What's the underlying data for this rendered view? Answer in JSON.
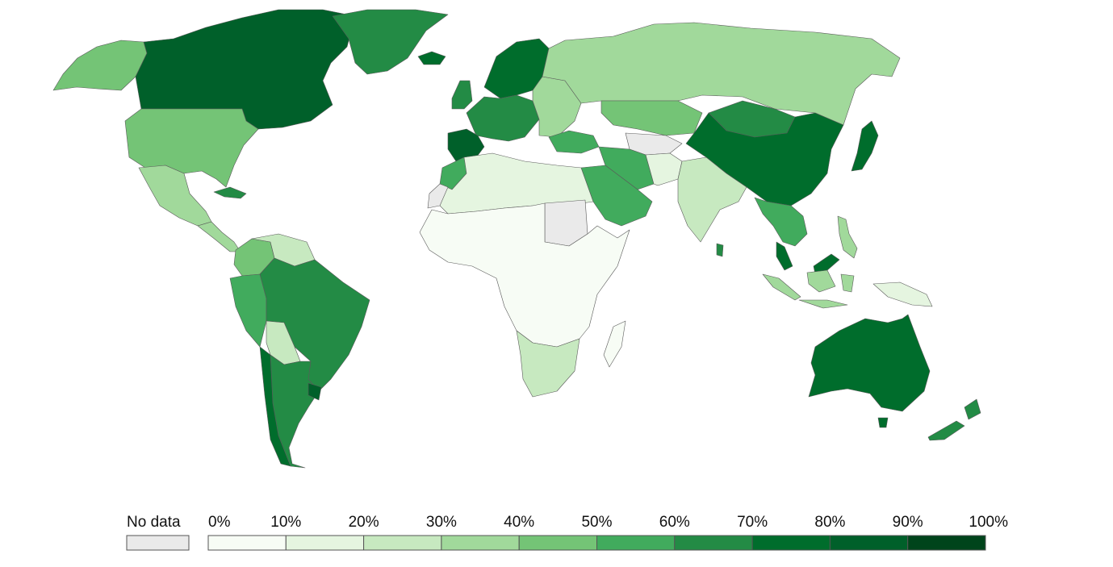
{
  "legend": {
    "no_data_label": "No data",
    "tick_labels": [
      "0%",
      "10%",
      "20%",
      "30%",
      "40%",
      "50%",
      "60%",
      "70%",
      "80%",
      "90%",
      "100%"
    ],
    "no_data_color": "#eaeaea",
    "bin_colors": [
      "#f7fcf5",
      "#e5f5e0",
      "#c7e9c0",
      "#a1d99b",
      "#74c476",
      "#41ab5d",
      "#238b45",
      "#006d2c",
      "#00602a",
      "#00441b"
    ]
  },
  "regions": [
    {
      "id": "alaska",
      "name": "Alaska",
      "bin": 4
    },
    {
      "id": "canada",
      "name": "Canada",
      "bin": 8
    },
    {
      "id": "greenland",
      "name": "Greenland",
      "bin": 6
    },
    {
      "id": "usa",
      "name": "United States",
      "bin": 4
    },
    {
      "id": "mexico",
      "name": "Mexico",
      "bin": 3
    },
    {
      "id": "central-america",
      "name": "Central America",
      "bin": 3
    },
    {
      "id": "cuba",
      "name": "Cuba",
      "bin": 6
    },
    {
      "id": "colombia",
      "name": "Colombia",
      "bin": 4
    },
    {
      "id": "venezuela",
      "name": "Venezuela",
      "bin": 2
    },
    {
      "id": "peru",
      "name": "Peru",
      "bin": 5
    },
    {
      "id": "brazil",
      "name": "Brazil",
      "bin": 6
    },
    {
      "id": "bolivia",
      "name": "Bolivia",
      "bin": 2
    },
    {
      "id": "argentina",
      "name": "Argentina",
      "bin": 6
    },
    {
      "id": "chile",
      "name": "Chile",
      "bin": 7
    },
    {
      "id": "uruguay",
      "name": "Uruguay",
      "bin": 8
    },
    {
      "id": "iceland",
      "name": "Iceland",
      "bin": 7
    },
    {
      "id": "scandinavia",
      "name": "Scandinavia",
      "bin": 7
    },
    {
      "id": "uk",
      "name": "United Kingdom",
      "bin": 6
    },
    {
      "id": "western-europe",
      "name": "Western Europe",
      "bin": 6
    },
    {
      "id": "iberia",
      "name": "Spain and Portugal",
      "bin": 8
    },
    {
      "id": "eastern-europe",
      "name": "Eastern Europe",
      "bin": 3
    },
    {
      "id": "turkey",
      "name": "Turkey",
      "bin": 5
    },
    {
      "id": "russia",
      "name": "Russia",
      "bin": 3
    },
    {
      "id": "kazakhstan",
      "name": "Kazakhstan",
      "bin": 4
    },
    {
      "id": "mongolia",
      "name": "Mongolia",
      "bin": 6
    },
    {
      "id": "china",
      "name": "China",
      "bin": 7
    },
    {
      "id": "japan",
      "name": "Japan",
      "bin": 7
    },
    {
      "id": "central-asia",
      "name": "Central Asia",
      "bin": -1
    },
    {
      "id": "iran",
      "name": "Iran",
      "bin": 5
    },
    {
      "id": "pakistan",
      "name": "Pakistan",
      "bin": 1
    },
    {
      "id": "india",
      "name": "India",
      "bin": 2
    },
    {
      "id": "southeast-asia",
      "name": "Southeast Asia",
      "bin": 5
    },
    {
      "id": "malaysia",
      "name": "Malaysia",
      "bin": 7
    },
    {
      "id": "indonesia",
      "name": "Indonesia",
      "bin": 3
    },
    {
      "id": "philippines",
      "name": "Philippines",
      "bin": 3
    },
    {
      "id": "png",
      "name": "Papua New Guinea",
      "bin": 1
    },
    {
      "id": "arabia",
      "name": "Arabian Peninsula",
      "bin": 5
    },
    {
      "id": "north-africa",
      "name": "North Africa",
      "bin": 1
    },
    {
      "id": "morocco",
      "name": "Morocco",
      "bin": 5
    },
    {
      "id": "western-sahara",
      "name": "Western Sahara",
      "bin": -1
    },
    {
      "id": "sudan",
      "name": "Sudan",
      "bin": -1
    },
    {
      "id": "sub-saharan-africa",
      "name": "Sub-Saharan Africa",
      "bin": 0
    },
    {
      "id": "southern-africa",
      "name": "Southern Africa",
      "bin": 2
    },
    {
      "id": "madagascar",
      "name": "Madagascar",
      "bin": 0
    },
    {
      "id": "sri-lanka",
      "name": "Sri Lanka",
      "bin": 6
    },
    {
      "id": "australia",
      "name": "Australia",
      "bin": 7
    },
    {
      "id": "tasmania",
      "name": "Tasmania",
      "bin": 7
    },
    {
      "id": "new-zealand",
      "name": "New Zealand",
      "bin": 6
    }
  ]
}
